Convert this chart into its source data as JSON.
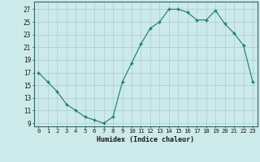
{
  "x": [
    0,
    1,
    2,
    3,
    4,
    5,
    6,
    7,
    8,
    9,
    10,
    11,
    12,
    13,
    14,
    15,
    16,
    17,
    18,
    19,
    20,
    21,
    22,
    23
  ],
  "y": [
    17,
    15.5,
    14,
    12,
    11,
    10,
    9.5,
    9,
    10,
    15.5,
    18.5,
    21.5,
    24,
    25,
    27,
    27,
    26.5,
    25.3,
    25.3,
    26.8,
    24.7,
    23.2,
    21.3,
    15.5
  ],
  "line_color": "#1a7a6e",
  "marker_color": "#1a7a6e",
  "bg_color": "#cceaea",
  "grid_color": "#aacccc",
  "xlabel": "Humidex (Indice chaleur)",
  "yticks": [
    9,
    11,
    13,
    15,
    17,
    19,
    21,
    23,
    25,
    27
  ],
  "xticks": [
    0,
    1,
    2,
    3,
    4,
    5,
    6,
    7,
    8,
    9,
    10,
    11,
    12,
    13,
    14,
    15,
    16,
    17,
    18,
    19,
    20,
    21,
    22,
    23
  ],
  "xlim": [
    -0.5,
    23.5
  ],
  "ylim": [
    8.5,
    28.2
  ]
}
